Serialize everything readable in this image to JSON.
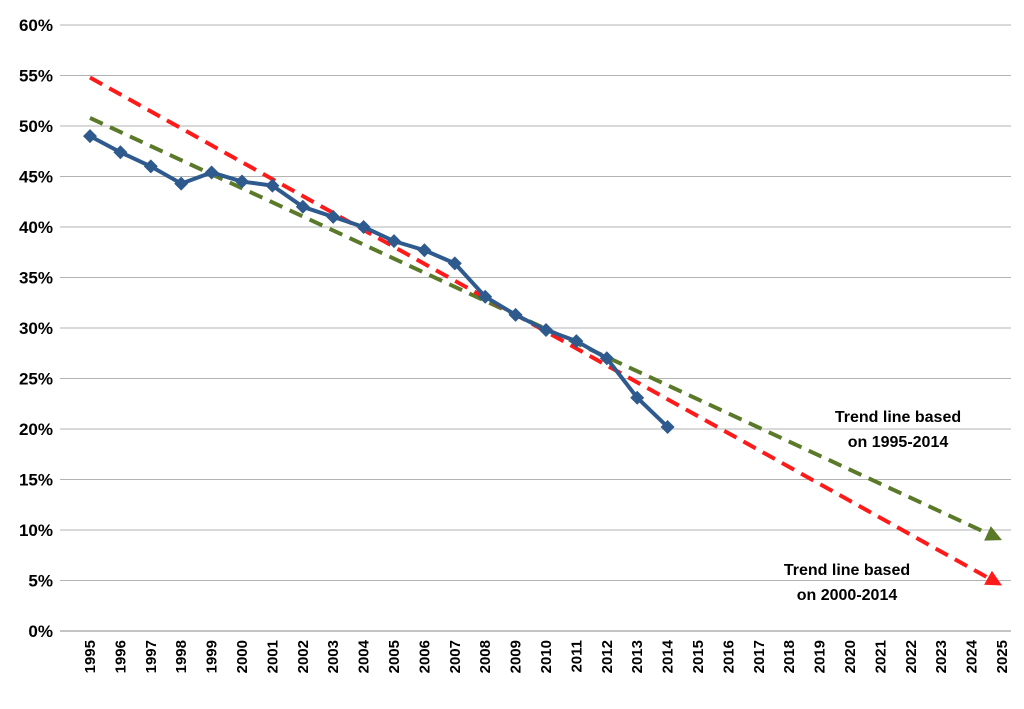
{
  "chart_data": {
    "type": "line",
    "title": "",
    "xlabel": "",
    "ylabel": "",
    "y_unit": "%",
    "ylim": [
      0,
      60
    ],
    "y_ticks": [
      0,
      5,
      10,
      15,
      20,
      25,
      30,
      35,
      40,
      45,
      50,
      55,
      60
    ],
    "y_tick_labels": [
      "0%",
      "5%",
      "10%",
      "15%",
      "20%",
      "25%",
      "30%",
      "35%",
      "40%",
      "45%",
      "50%",
      "55%",
      "60%"
    ],
    "x_categories": [
      "1995",
      "1996",
      "1997",
      "1998",
      "1999",
      "2000",
      "2001",
      "2002",
      "2003",
      "2004",
      "2005",
      "2006",
      "2007",
      "2008",
      "2009",
      "2010",
      "2011",
      "2012",
      "2013",
      "2014",
      "2015",
      "2016",
      "2017",
      "2018",
      "2019",
      "2020",
      "2021",
      "2022",
      "2023",
      "2024",
      "2025"
    ],
    "grid": true,
    "legend": "none",
    "series": [
      {
        "style": "solid-markers",
        "color": "#2e5a8e",
        "marker": "diamond",
        "points": [
          [
            "1995",
            49.0
          ],
          [
            "1996",
            47.4
          ],
          [
            "1997",
            46.0
          ],
          [
            "1998",
            44.3
          ],
          [
            "1999",
            45.4
          ],
          [
            "2000",
            44.5
          ],
          [
            "2001",
            44.1
          ],
          [
            "2002",
            42.0
          ],
          [
            "2003",
            41.0
          ],
          [
            "2004",
            40.0
          ],
          [
            "2005",
            38.6
          ],
          [
            "2006",
            37.7
          ],
          [
            "2007",
            36.4
          ],
          [
            "2008",
            33.1
          ],
          [
            "2009",
            31.3
          ],
          [
            "2010",
            29.8
          ],
          [
            "2011",
            28.7
          ],
          [
            "2012",
            27.0
          ],
          [
            "2013",
            23.1
          ],
          [
            "2014",
            20.2
          ]
        ]
      },
      {
        "style": "dashed-arrow",
        "color": "#5a7a2a",
        "points": [
          [
            "1995",
            50.8
          ],
          [
            "2025",
            9.0
          ]
        ]
      },
      {
        "style": "dashed-arrow",
        "color": "#ff1a1a",
        "points": [
          [
            "1995",
            54.8
          ],
          [
            "2025",
            4.5
          ]
        ]
      }
    ],
    "annotations": [
      {
        "lines": [
          "Trend line based",
          "on 1995-2014"
        ]
      },
      {
        "lines": [
          "Trend line based",
          "on 2000-2014"
        ]
      }
    ]
  }
}
